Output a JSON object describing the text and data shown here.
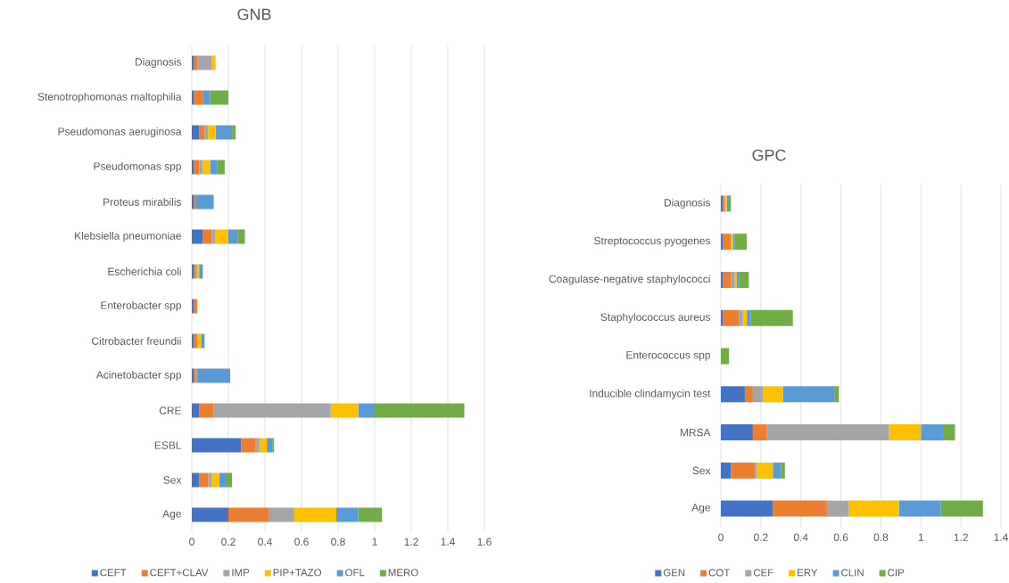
{
  "chart_data": [
    {
      "type": "bar",
      "orientation": "horizontal",
      "stacked": true,
      "title": "GNB",
      "categories": [
        "Diagnosis",
        "Stenotrophomonas maltophilia",
        "Pseudomonas aeruginosa",
        "Pseudomonas spp",
        "Proteus mirabilis",
        "Klebsiella pneumoniae",
        "Escherichia coli",
        "Enterobacter spp",
        "Citrobacter freundii",
        "Acinetobacter spp",
        "CRE",
        "ESBL",
        "Sex",
        "Age"
      ],
      "series": [
        {
          "name": "CEFT",
          "color": "#4472c4",
          "values": [
            0.01,
            0.01,
            0.04,
            0.01,
            0.01,
            0.06,
            0.01,
            0.01,
            0.01,
            0.01,
            0.04,
            0.27,
            0.04,
            0.2
          ]
        },
        {
          "name": "CEFT+CLAV",
          "color": "#ed7d31",
          "values": [
            0.02,
            0.05,
            0.03,
            0.03,
            0.01,
            0.05,
            0.01,
            0.02,
            0.02,
            0.01,
            0.08,
            0.08,
            0.05,
            0.22
          ]
        },
        {
          "name": "IMP",
          "color": "#a5a5a5",
          "values": [
            0.08,
            0,
            0.02,
            0.02,
            0,
            0.02,
            0.01,
            0,
            0,
            0.01,
            0.64,
            0.02,
            0.02,
            0.14
          ]
        },
        {
          "name": "PIP+TAZO",
          "color": "#ffc000",
          "values": [
            0.02,
            0,
            0.04,
            0.04,
            0,
            0.07,
            0.01,
            0,
            0.02,
            0,
            0.15,
            0.04,
            0.04,
            0.23
          ]
        },
        {
          "name": "OFL",
          "color": "#5b9bd5",
          "values": [
            0,
            0.04,
            0.09,
            0.04,
            0.1,
            0.05,
            0.02,
            0,
            0.02,
            0.18,
            0.09,
            0.03,
            0.04,
            0.12
          ]
        },
        {
          "name": "MERO",
          "color": "#70ad47",
          "values": [
            0,
            0.1,
            0.02,
            0.04,
            0,
            0.04,
            0,
            0,
            0,
            0,
            0.49,
            0.01,
            0.03,
            0.13
          ]
        }
      ],
      "xlim": [
        0,
        1.6
      ],
      "xticks": [
        0,
        0.2,
        0.4,
        0.6,
        0.8,
        1,
        1.2,
        1.4,
        1.6
      ],
      "grid": "x",
      "legend": "bottom"
    },
    {
      "type": "bar",
      "orientation": "horizontal",
      "stacked": true,
      "title": "GPC",
      "categories": [
        "Diagnosis",
        "Streptococcus pyogenes",
        "Coagulase-negative staphylococci",
        "Staphylococcus aureus",
        "Enterococcus spp",
        "Inducible clindamycin test",
        "MRSA",
        "Sex",
        "Age"
      ],
      "series": [
        {
          "name": "GEN",
          "color": "#4472c4",
          "values": [
            0.01,
            0.01,
            0.01,
            0.01,
            0,
            0.12,
            0.16,
            0.05,
            0.26
          ]
        },
        {
          "name": "COT",
          "color": "#ed7d31",
          "values": [
            0.01,
            0.04,
            0.04,
            0.08,
            0,
            0.04,
            0.07,
            0.12,
            0.27
          ]
        },
        {
          "name": "CEF",
          "color": "#a5a5a5",
          "values": [
            0,
            0,
            0.02,
            0.02,
            0,
            0.05,
            0.61,
            0.01,
            0.11
          ]
        },
        {
          "name": "ERY",
          "color": "#ffc000",
          "values": [
            0.01,
            0.01,
            0.01,
            0.02,
            0,
            0.1,
            0.16,
            0.08,
            0.25
          ]
        },
        {
          "name": "CLIN",
          "color": "#5b9bd5",
          "values": [
            0.01,
            0.01,
            0.01,
            0.02,
            0,
            0.26,
            0.11,
            0.04,
            0.21
          ]
        },
        {
          "name": "CIP",
          "color": "#70ad47",
          "values": [
            0.01,
            0.06,
            0.05,
            0.21,
            0.04,
            0.02,
            0.06,
            0.02,
            0.21
          ]
        }
      ],
      "xlim": [
        0,
        1.4
      ],
      "xticks": [
        0,
        0.2,
        0.4,
        0.6,
        0.8,
        1,
        1.2,
        1.4
      ],
      "grid": "x",
      "legend": "bottom"
    }
  ]
}
